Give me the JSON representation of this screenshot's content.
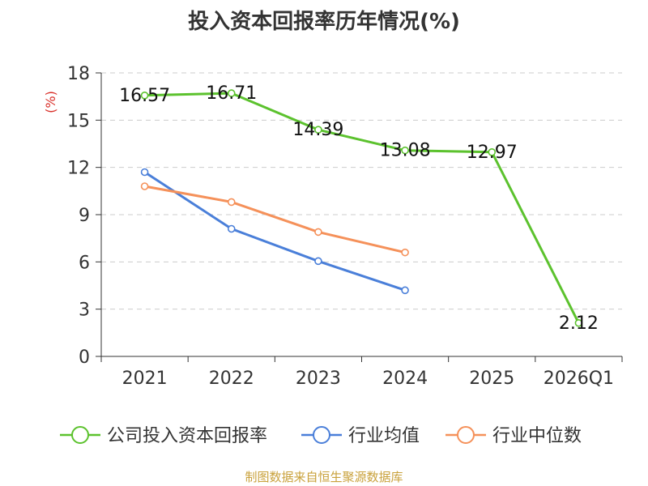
{
  "chart_data": {
    "type": "line",
    "title": "投入资本回报率历年情况(%)",
    "ylabel": "(%)",
    "xlabel": "",
    "categories": [
      "2021",
      "2022",
      "2023",
      "2024",
      "2025",
      "2026Q1"
    ],
    "ylim": [
      0,
      18
    ],
    "yticks": [
      0,
      3,
      6,
      9,
      12,
      15,
      18
    ],
    "grid": true,
    "legend_position": "bottom",
    "series": [
      {
        "name": "公司投入资本回报率",
        "color": "#5cc22e",
        "values": [
          16.57,
          16.71,
          14.39,
          13.08,
          12.97,
          2.12
        ],
        "labels": [
          "16.57",
          "16.71",
          "14.39",
          "13.08",
          "12.97",
          "2.12"
        ]
      },
      {
        "name": "行业均值",
        "color": "#4a7fd9",
        "values": [
          11.7,
          8.1,
          6.05,
          4.2,
          null,
          null
        ]
      },
      {
        "name": "行业中位数",
        "color": "#f5915a",
        "values": [
          10.8,
          9.8,
          7.9,
          6.6,
          null,
          null
        ]
      }
    ]
  },
  "source": "制图数据来自恒生聚源数据库"
}
